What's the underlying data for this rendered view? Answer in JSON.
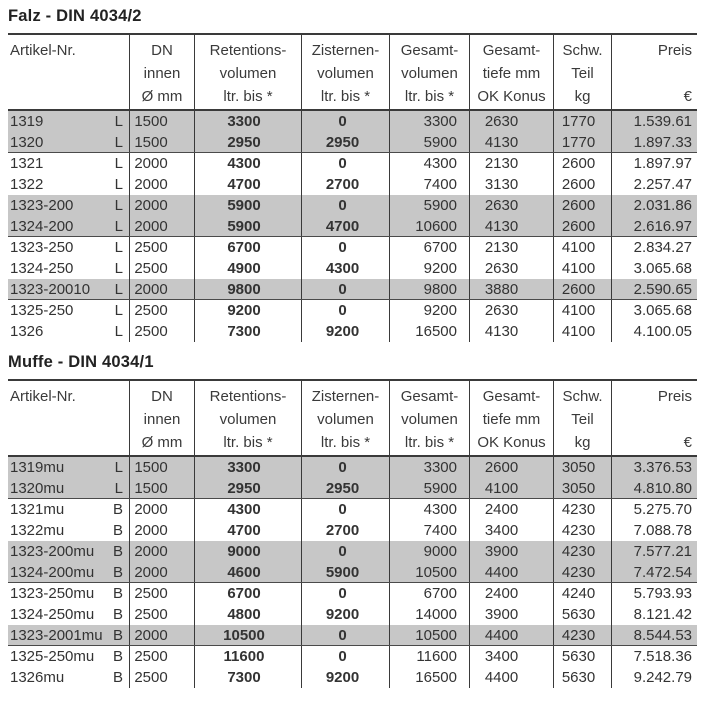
{
  "colors": {
    "stripe_gray": "#c7c7c7",
    "table_line": "#3a3a3a",
    "text": "#333333"
  },
  "tables": [
    {
      "title": "Falz - DIN 4034/2",
      "header": {
        "artikel": "Artikel-Nr.",
        "columns": [
          [
            "DN",
            "innen",
            "Ø mm"
          ],
          [
            "Retentions-",
            "volumen",
            "ltr. bis *"
          ],
          [
            "Zisternen-",
            "volumen",
            "ltr. bis *"
          ],
          [
            "Gesamt-",
            "volumen",
            "ltr. bis *"
          ],
          [
            "Gesamt-",
            "tiefe mm",
            "OK Konus"
          ],
          [
            "Schw.",
            "Teil",
            "kg"
          ],
          [
            "Preis",
            "",
            "€"
          ]
        ]
      },
      "rows": [
        {
          "artikel": "1319",
          "variant": "L",
          "dn": "1500",
          "retention": "3300",
          "zisterne": "0",
          "gesamtvolumen": "3300",
          "gesamttiefe": "2630",
          "schwteil": "1770",
          "preis": "1.539.61",
          "shade": true,
          "groupEnd": false
        },
        {
          "artikel": "1320",
          "variant": "L",
          "dn": "1500",
          "retention": "2950",
          "zisterne": "2950",
          "gesamtvolumen": "5900",
          "gesamttiefe": "4130",
          "schwteil": "1770",
          "preis": "1.897.33",
          "shade": true,
          "groupEnd": true
        },
        {
          "artikel": "1321",
          "variant": "L",
          "dn": "2000",
          "retention": "4300",
          "zisterne": "0",
          "gesamtvolumen": "4300",
          "gesamttiefe": "2130",
          "schwteil": "2600",
          "preis": "1.897.97",
          "shade": false,
          "groupEnd": false
        },
        {
          "artikel": "1322",
          "variant": "L",
          "dn": "2000",
          "retention": "4700",
          "zisterne": "2700",
          "gesamtvolumen": "7400",
          "gesamttiefe": "3130",
          "schwteil": "2600",
          "preis": "2.257.47",
          "shade": false,
          "groupEnd": false
        },
        {
          "artikel": "1323-200",
          "variant": "L",
          "dn": "2000",
          "retention": "5900",
          "zisterne": "0",
          "gesamtvolumen": "5900",
          "gesamttiefe": "2630",
          "schwteil": "2600",
          "preis": "2.031.86",
          "shade": true,
          "groupEnd": false
        },
        {
          "artikel": "1324-200",
          "variant": "L",
          "dn": "2000",
          "retention": "5900",
          "zisterne": "4700",
          "gesamtvolumen": "10600",
          "gesamttiefe": "4130",
          "schwteil": "2600",
          "preis": "2.616.97",
          "shade": true,
          "groupEnd": true
        },
        {
          "artikel": "1323-250",
          "variant": "L",
          "dn": "2500",
          "retention": "6700",
          "zisterne": "0",
          "gesamtvolumen": "6700",
          "gesamttiefe": "2130",
          "schwteil": "4100",
          "preis": "2.834.27",
          "shade": false,
          "groupEnd": false
        },
        {
          "artikel": "1324-250",
          "variant": "L",
          "dn": "2500",
          "retention": "4900",
          "zisterne": "4300",
          "gesamtvolumen": "9200",
          "gesamttiefe": "2630",
          "schwteil": "4100",
          "preis": "3.065.68",
          "shade": false,
          "groupEnd": false
        },
        {
          "artikel": "1323-20010",
          "variant": "L",
          "dn": "2000",
          "retention": "9800",
          "zisterne": "0",
          "gesamtvolumen": "9800",
          "gesamttiefe": "3880",
          "schwteil": "2600",
          "preis": "2.590.65",
          "shade": true,
          "groupEnd": true
        },
        {
          "artikel": "1325-250",
          "variant": "L",
          "dn": "2500",
          "retention": "9200",
          "zisterne": "0",
          "gesamtvolumen": "9200",
          "gesamttiefe": "2630",
          "schwteil": "4100",
          "preis": "3.065.68",
          "shade": false,
          "groupEnd": false
        },
        {
          "artikel": "1326",
          "variant": "L",
          "dn": "2500",
          "retention": "7300",
          "zisterne": "9200",
          "gesamtvolumen": "16500",
          "gesamttiefe": "4130",
          "schwteil": "4100",
          "preis": "4.100.05",
          "shade": false,
          "groupEnd": false
        }
      ]
    },
    {
      "title": "Muffe - DIN 4034/1",
      "header": {
        "artikel": "Artikel-Nr.",
        "columns": [
          [
            "DN",
            "innen",
            "Ø mm"
          ],
          [
            "Retentions-",
            "volumen",
            "ltr. bis *"
          ],
          [
            "Zisternen-",
            "volumen",
            "ltr. bis *"
          ],
          [
            "Gesamt-",
            "volumen",
            "ltr. bis *"
          ],
          [
            "Gesamt-",
            "tiefe mm",
            "OK Konus"
          ],
          [
            "Schw.",
            "Teil",
            "kg"
          ],
          [
            "Preis",
            "",
            "€"
          ]
        ]
      },
      "rows": [
        {
          "artikel": "1319mu",
          "variant": "L",
          "dn": "1500",
          "retention": "3300",
          "zisterne": "0",
          "gesamtvolumen": "3300",
          "gesamttiefe": "2600",
          "schwteil": "3050",
          "preis": "3.376.53",
          "shade": true,
          "groupEnd": false
        },
        {
          "artikel": "1320mu",
          "variant": "L",
          "dn": "1500",
          "retention": "2950",
          "zisterne": "2950",
          "gesamtvolumen": "5900",
          "gesamttiefe": "4100",
          "schwteil": "3050",
          "preis": "4.810.80",
          "shade": true,
          "groupEnd": true
        },
        {
          "artikel": "1321mu",
          "variant": "B",
          "dn": "2000",
          "retention": "4300",
          "zisterne": "0",
          "gesamtvolumen": "4300",
          "gesamttiefe": "2400",
          "schwteil": "4230",
          "preis": "5.275.70",
          "shade": false,
          "groupEnd": false
        },
        {
          "artikel": "1322mu",
          "variant": "B",
          "dn": "2000",
          "retention": "4700",
          "zisterne": "2700",
          "gesamtvolumen": "7400",
          "gesamttiefe": "3400",
          "schwteil": "4230",
          "preis": "7.088.78",
          "shade": false,
          "groupEnd": false
        },
        {
          "artikel": "1323-200mu",
          "variant": "B",
          "dn": "2000",
          "retention": "9000",
          "zisterne": "0",
          "gesamtvolumen": "9000",
          "gesamttiefe": "3900",
          "schwteil": "4230",
          "preis": "7.577.21",
          "shade": true,
          "groupEnd": false
        },
        {
          "artikel": "1324-200mu",
          "variant": "B",
          "dn": "2000",
          "retention": "4600",
          "zisterne": "5900",
          "gesamtvolumen": "10500",
          "gesamttiefe": "4400",
          "schwteil": "4230",
          "preis": "7.472.54",
          "shade": true,
          "groupEnd": true
        },
        {
          "artikel": "1323-250mu",
          "variant": "B",
          "dn": "2500",
          "retention": "6700",
          "zisterne": "0",
          "gesamtvolumen": "6700",
          "gesamttiefe": "2400",
          "schwteil": "4240",
          "preis": "5.793.93",
          "shade": false,
          "groupEnd": false
        },
        {
          "artikel": "1324-250mu",
          "variant": "B",
          "dn": "2500",
          "retention": "4800",
          "zisterne": "9200",
          "gesamtvolumen": "14000",
          "gesamttiefe": "3900",
          "schwteil": "5630",
          "preis": "8.121.42",
          "shade": false,
          "groupEnd": false
        },
        {
          "artikel": "1323-2001mu",
          "variant": "B",
          "dn": "2000",
          "retention": "10500",
          "zisterne": "0",
          "gesamtvolumen": "10500",
          "gesamttiefe": "4400",
          "schwteil": "4230",
          "preis": "8.544.53",
          "shade": true,
          "groupEnd": true
        },
        {
          "artikel": "1325-250mu",
          "variant": "B",
          "dn": "2500",
          "retention": "11600",
          "zisterne": "0",
          "gesamtvolumen": "11600",
          "gesamttiefe": "3400",
          "schwteil": "5630",
          "preis": "7.518.36",
          "shade": false,
          "groupEnd": false
        },
        {
          "artikel": "1326mu",
          "variant": "B",
          "dn": "2500",
          "retention": "7300",
          "zisterne": "9200",
          "gesamtvolumen": "16500",
          "gesamttiefe": "4400",
          "schwteil": "5630",
          "preis": "9.242.79",
          "shade": false,
          "groupEnd": false
        }
      ]
    }
  ]
}
